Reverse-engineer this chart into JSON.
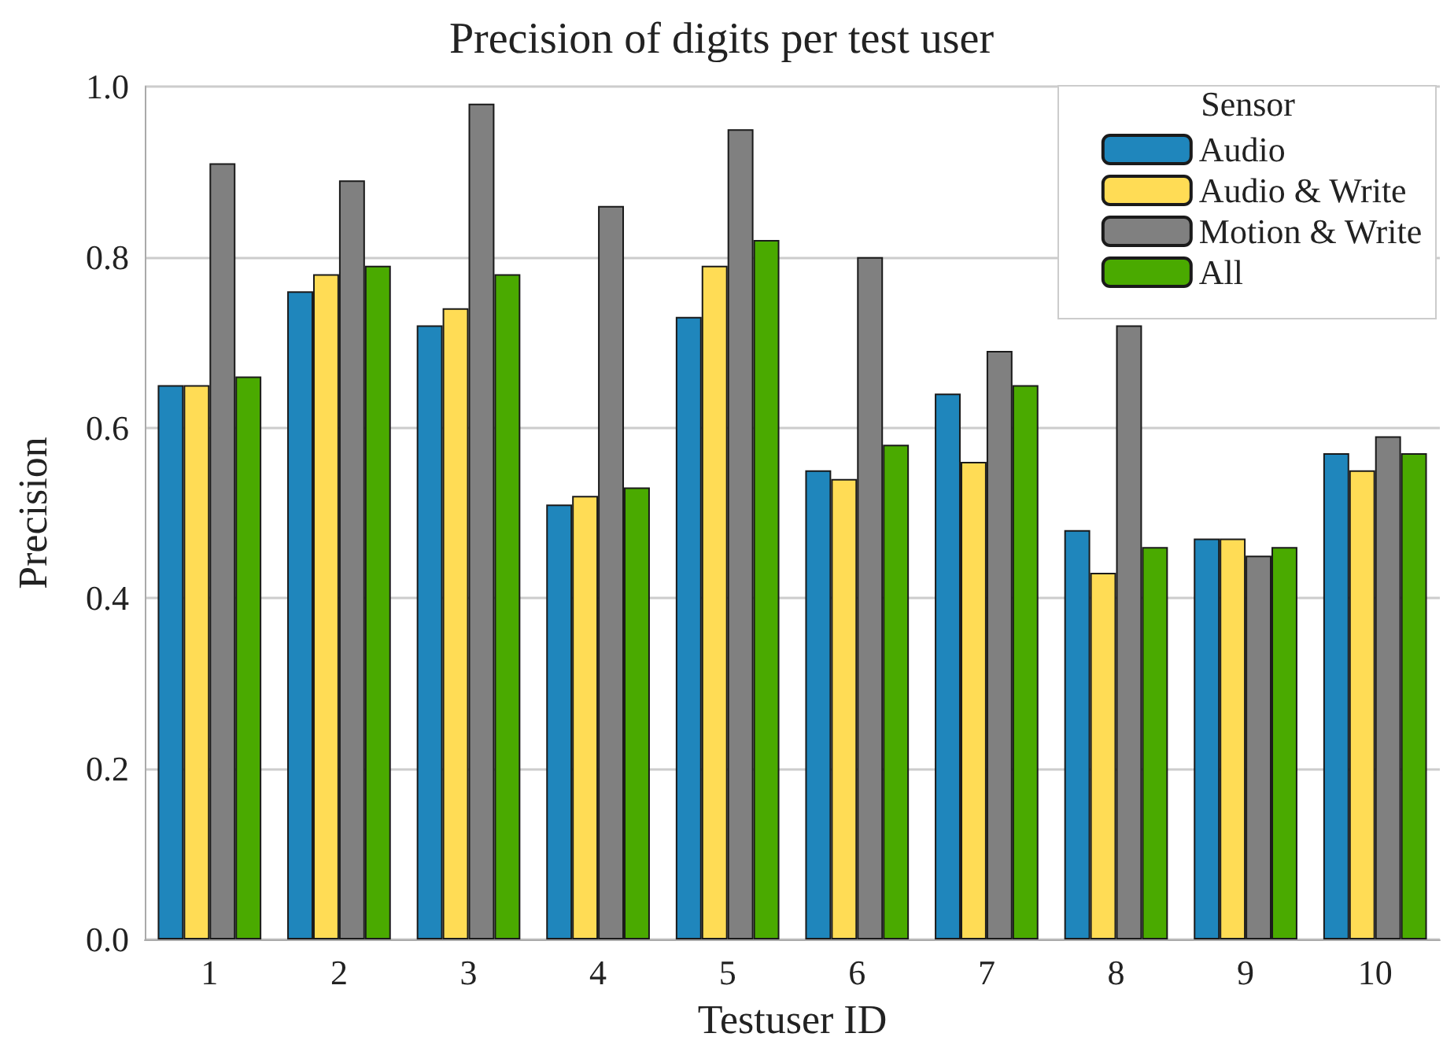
{
  "chart_data": {
    "type": "bar",
    "title": "Precision of digits per test user",
    "xlabel": "Testuser ID",
    "ylabel": "Precision",
    "legend_title": "Sensor",
    "categories": [
      "1",
      "2",
      "3",
      "4",
      "5",
      "6",
      "7",
      "8",
      "9",
      "10"
    ],
    "series": [
      {
        "name": "Audio",
        "color": "#1f86bc",
        "values": [
          0.65,
          0.76,
          0.72,
          0.51,
          0.73,
          0.55,
          0.64,
          0.48,
          0.47,
          0.57
        ]
      },
      {
        "name": "Audio & Write",
        "color": "#ffdc55",
        "values": [
          0.65,
          0.78,
          0.74,
          0.52,
          0.79,
          0.54,
          0.56,
          0.43,
          0.47,
          0.55
        ]
      },
      {
        "name": "Motion & Write",
        "color": "#808080",
        "values": [
          0.91,
          0.89,
          0.98,
          0.86,
          0.95,
          0.8,
          0.69,
          0.72,
          0.45,
          0.59
        ]
      },
      {
        "name": "All",
        "color": "#4aaa00",
        "values": [
          0.66,
          0.79,
          0.78,
          0.53,
          0.82,
          0.58,
          0.65,
          0.46,
          0.46,
          0.57
        ]
      }
    ],
    "ylim": [
      0,
      1.0
    ],
    "yticks": [
      {
        "value": 0,
        "label": "0.0"
      },
      {
        "value": 0.2,
        "label": "0.2"
      },
      {
        "value": 0.4,
        "label": "0.4"
      },
      {
        "value": 0.6,
        "label": "0.6"
      },
      {
        "value": 0.8,
        "label": "0.8"
      },
      {
        "value": 1.0,
        "label": "1.0"
      }
    ],
    "grid": "y",
    "legend": "top right"
  }
}
